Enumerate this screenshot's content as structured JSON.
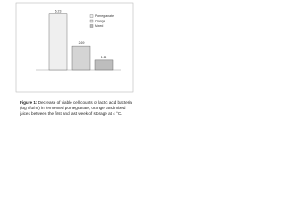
{
  "chart_data": {
    "type": "bar",
    "series": [
      {
        "name": "Pomegranate",
        "color": "#efefef",
        "values": [
          6.23
        ]
      },
      {
        "name": "Orange",
        "color": "#d4d4d4",
        "values": [
          2.69
        ]
      },
      {
        "name": "Mixed",
        "color": "#bdbdbd",
        "values": [
          1.11
        ]
      }
    ],
    "ylim": [
      0,
      7
    ],
    "legend": "upper right"
  },
  "caption": {
    "label": "Figure 1:",
    "text": "Decrease of viable cell counts of lactic acid bacteria (log cfu/ml) in fermented pomegranate, orange, and mixed juices between the first and last week of storage at 4 °C."
  }
}
